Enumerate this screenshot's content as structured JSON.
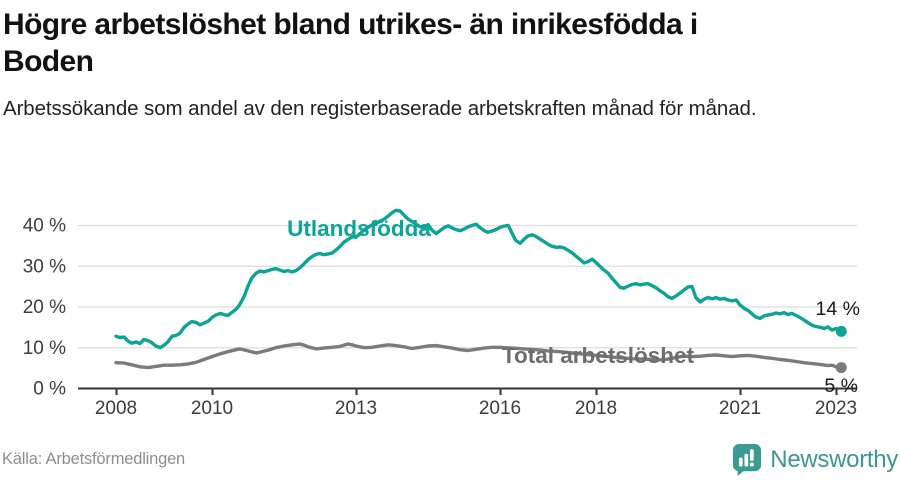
{
  "page": {
    "title": "Högre arbetslöshet bland utrikes- än inrikesfödda i Boden",
    "subtitle": "Arbetssökande som andel av den registerbaserade arbetskraften månad för månad.",
    "source": "Källa: Arbetsförmedlingen",
    "brand": {
      "name": "Newsworthy",
      "logo_icon": "bar-chart-speech-bubble-icon",
      "brand_color": "#3b9b93"
    }
  },
  "chart_data": {
    "type": "line",
    "title": "Högre arbetslöshet bland utrikes- än inrikesfödda i Boden",
    "subtitle": "Arbetssökande som andel av den registerbaserade arbetskraften månad för månad.",
    "unit": "%",
    "grid": "horizontal-only",
    "legend_position": "inline-labels-on-lines",
    "xlim": [
      2007.2,
      2023.45
    ],
    "ylim": [
      0,
      45
    ],
    "y_ticks": [
      {
        "value": 0,
        "label": "0 %"
      },
      {
        "value": 10,
        "label": "10 %"
      },
      {
        "value": 20,
        "label": "20 %"
      },
      {
        "value": 30,
        "label": "30 %"
      },
      {
        "value": 40,
        "label": "40 %"
      }
    ],
    "x_ticks": [
      {
        "value": 2008,
        "label": "2008"
      },
      {
        "value": 2010,
        "label": "2010"
      },
      {
        "value": 2013,
        "label": "2013"
      },
      {
        "value": 2016,
        "label": "2016"
      },
      {
        "value": 2018,
        "label": "2018"
      },
      {
        "value": 2021,
        "label": "2021"
      },
      {
        "value": 2023,
        "label": "2023"
      }
    ],
    "series": [
      {
        "id": "utlandsfodda",
        "name": "Utlandsfödda",
        "color": "#0ca496",
        "label_color": "#0ca496",
        "end_label": "14 %",
        "end_value": 14,
        "points": [
          [
            2008.0,
            12.7
          ],
          [
            2008.08,
            12.4
          ],
          [
            2008.17,
            12.5
          ],
          [
            2008.25,
            11.5
          ],
          [
            2008.33,
            11.0
          ],
          [
            2008.42,
            11.3
          ],
          [
            2008.5,
            10.9
          ],
          [
            2008.58,
            11.9
          ],
          [
            2008.67,
            11.6
          ],
          [
            2008.75,
            11.1
          ],
          [
            2008.83,
            10.3
          ],
          [
            2008.92,
            9.9
          ],
          [
            2009.0,
            10.5
          ],
          [
            2009.08,
            11.3
          ],
          [
            2009.17,
            12.7
          ],
          [
            2009.25,
            12.9
          ],
          [
            2009.33,
            13.4
          ],
          [
            2009.42,
            14.9
          ],
          [
            2009.5,
            15.7
          ],
          [
            2009.58,
            16.3
          ],
          [
            2009.67,
            16.1
          ],
          [
            2009.75,
            15.5
          ],
          [
            2009.83,
            15.9
          ],
          [
            2009.92,
            16.4
          ],
          [
            2010.0,
            17.3
          ],
          [
            2010.08,
            17.9
          ],
          [
            2010.17,
            18.3
          ],
          [
            2010.25,
            18.0
          ],
          [
            2010.33,
            17.8
          ],
          [
            2010.42,
            18.6
          ],
          [
            2010.5,
            19.3
          ],
          [
            2010.58,
            20.5
          ],
          [
            2010.67,
            22.5
          ],
          [
            2010.75,
            25.0
          ],
          [
            2010.83,
            27.0
          ],
          [
            2010.92,
            28.2
          ],
          [
            2011.0,
            28.7
          ],
          [
            2011.08,
            28.5
          ],
          [
            2011.17,
            28.8
          ],
          [
            2011.25,
            29.1
          ],
          [
            2011.33,
            29.3
          ],
          [
            2011.42,
            28.9
          ],
          [
            2011.5,
            28.6
          ],
          [
            2011.58,
            28.8
          ],
          [
            2011.67,
            28.5
          ],
          [
            2011.75,
            28.8
          ],
          [
            2011.83,
            29.5
          ],
          [
            2011.92,
            30.5
          ],
          [
            2012.0,
            31.5
          ],
          [
            2012.08,
            32.2
          ],
          [
            2012.17,
            32.8
          ],
          [
            2012.25,
            33.0
          ],
          [
            2012.33,
            32.7
          ],
          [
            2012.42,
            32.9
          ],
          [
            2012.5,
            33.1
          ],
          [
            2012.58,
            33.8
          ],
          [
            2012.67,
            34.8
          ],
          [
            2012.75,
            35.8
          ],
          [
            2012.83,
            36.4
          ],
          [
            2012.92,
            37.1
          ],
          [
            2013.0,
            37.0
          ],
          [
            2013.08,
            37.8
          ],
          [
            2013.17,
            38.8
          ],
          [
            2013.25,
            39.4
          ],
          [
            2013.33,
            40.0
          ],
          [
            2013.42,
            40.4
          ],
          [
            2013.5,
            40.9
          ],
          [
            2013.58,
            41.4
          ],
          [
            2013.67,
            42.2
          ],
          [
            2013.75,
            43.0
          ],
          [
            2013.83,
            43.6
          ],
          [
            2013.92,
            43.4
          ],
          [
            2014.0,
            42.4
          ],
          [
            2014.08,
            41.5
          ],
          [
            2014.17,
            40.8
          ],
          [
            2014.25,
            40.2
          ],
          [
            2014.33,
            39.6
          ],
          [
            2014.42,
            39.3
          ],
          [
            2014.5,
            40.1
          ],
          [
            2014.58,
            38.8
          ],
          [
            2014.67,
            37.9
          ],
          [
            2014.75,
            38.6
          ],
          [
            2014.83,
            39.3
          ],
          [
            2014.92,
            39.8
          ],
          [
            2015.0,
            39.3
          ],
          [
            2015.08,
            38.9
          ],
          [
            2015.17,
            38.6
          ],
          [
            2015.25,
            39.0
          ],
          [
            2015.33,
            39.5
          ],
          [
            2015.42,
            39.9
          ],
          [
            2015.5,
            40.2
          ],
          [
            2015.58,
            39.4
          ],
          [
            2015.67,
            38.6
          ],
          [
            2015.75,
            38.2
          ],
          [
            2015.83,
            38.5
          ],
          [
            2015.92,
            38.9
          ],
          [
            2016.0,
            39.4
          ],
          [
            2016.08,
            39.7
          ],
          [
            2016.17,
            39.9
          ],
          [
            2016.25,
            38.0
          ],
          [
            2016.33,
            36.2
          ],
          [
            2016.42,
            35.5
          ],
          [
            2016.5,
            36.5
          ],
          [
            2016.58,
            37.3
          ],
          [
            2016.67,
            37.6
          ],
          [
            2016.75,
            37.2
          ],
          [
            2016.83,
            36.6
          ],
          [
            2016.92,
            35.9
          ],
          [
            2017.0,
            35.3
          ],
          [
            2017.08,
            34.8
          ],
          [
            2017.17,
            34.5
          ],
          [
            2017.25,
            34.6
          ],
          [
            2017.33,
            34.4
          ],
          [
            2017.42,
            33.8
          ],
          [
            2017.5,
            33.2
          ],
          [
            2017.58,
            32.4
          ],
          [
            2017.67,
            31.5
          ],
          [
            2017.75,
            30.7
          ],
          [
            2017.83,
            31.0
          ],
          [
            2017.92,
            31.6
          ],
          [
            2018.0,
            30.8
          ],
          [
            2018.08,
            29.9
          ],
          [
            2018.17,
            28.9
          ],
          [
            2018.25,
            28.2
          ],
          [
            2018.33,
            27.0
          ],
          [
            2018.42,
            25.8
          ],
          [
            2018.5,
            24.7
          ],
          [
            2018.58,
            24.5
          ],
          [
            2018.67,
            25.0
          ],
          [
            2018.75,
            25.4
          ],
          [
            2018.83,
            25.6
          ],
          [
            2018.92,
            25.3
          ],
          [
            2019.0,
            25.5
          ],
          [
            2019.08,
            25.6
          ],
          [
            2019.17,
            25.1
          ],
          [
            2019.25,
            24.6
          ],
          [
            2019.33,
            23.9
          ],
          [
            2019.42,
            23.2
          ],
          [
            2019.5,
            22.4
          ],
          [
            2019.58,
            22.0
          ],
          [
            2019.67,
            22.6
          ],
          [
            2019.75,
            23.3
          ],
          [
            2019.83,
            24.0
          ],
          [
            2019.92,
            24.8
          ],
          [
            2020.0,
            24.9
          ],
          [
            2020.08,
            22.2
          ],
          [
            2020.17,
            21.1
          ],
          [
            2020.25,
            21.8
          ],
          [
            2020.33,
            22.2
          ],
          [
            2020.42,
            21.9
          ],
          [
            2020.5,
            22.2
          ],
          [
            2020.58,
            21.8
          ],
          [
            2020.67,
            22.0
          ],
          [
            2020.75,
            21.6
          ],
          [
            2020.83,
            21.4
          ],
          [
            2020.92,
            21.6
          ],
          [
            2021.0,
            20.4
          ],
          [
            2021.08,
            19.6
          ],
          [
            2021.17,
            19.0
          ],
          [
            2021.25,
            18.2
          ],
          [
            2021.33,
            17.4
          ],
          [
            2021.42,
            17.1
          ],
          [
            2021.5,
            17.7
          ],
          [
            2021.58,
            17.9
          ],
          [
            2021.67,
            18.1
          ],
          [
            2021.75,
            18.4
          ],
          [
            2021.83,
            18.2
          ],
          [
            2021.92,
            18.5
          ],
          [
            2022.0,
            18.0
          ],
          [
            2022.08,
            18.3
          ],
          [
            2022.17,
            17.8
          ],
          [
            2022.25,
            17.3
          ],
          [
            2022.33,
            16.7
          ],
          [
            2022.42,
            16.0
          ],
          [
            2022.5,
            15.4
          ],
          [
            2022.58,
            15.1
          ],
          [
            2022.67,
            14.9
          ],
          [
            2022.75,
            14.6
          ],
          [
            2022.83,
            15.0
          ],
          [
            2022.92,
            14.2
          ],
          [
            2023.0,
            14.6
          ],
          [
            2023.11,
            13.9
          ]
        ]
      },
      {
        "id": "total",
        "name": "Total arbetslöshet",
        "color": "#7b7b7b",
        "label_color": "#6d6d6d",
        "end_label": "5 %",
        "end_value": 5,
        "points": [
          [
            2008.0,
            6.2
          ],
          [
            2008.17,
            6.1
          ],
          [
            2008.33,
            5.7
          ],
          [
            2008.5,
            5.2
          ],
          [
            2008.67,
            5.0
          ],
          [
            2008.83,
            5.3
          ],
          [
            2009.0,
            5.6
          ],
          [
            2009.17,
            5.6
          ],
          [
            2009.33,
            5.7
          ],
          [
            2009.5,
            5.9
          ],
          [
            2009.67,
            6.3
          ],
          [
            2009.83,
            7.0
          ],
          [
            2010.0,
            7.7
          ],
          [
            2010.17,
            8.4
          ],
          [
            2010.33,
            8.9
          ],
          [
            2010.5,
            9.4
          ],
          [
            2010.58,
            9.6
          ],
          [
            2010.75,
            9.1
          ],
          [
            2010.92,
            8.6
          ],
          [
            2011.0,
            8.8
          ],
          [
            2011.17,
            9.3
          ],
          [
            2011.33,
            9.9
          ],
          [
            2011.5,
            10.3
          ],
          [
            2011.67,
            10.6
          ],
          [
            2011.83,
            10.8
          ],
          [
            2011.92,
            10.5
          ],
          [
            2012.0,
            10.1
          ],
          [
            2012.17,
            9.6
          ],
          [
            2012.33,
            9.8
          ],
          [
            2012.5,
            10.0
          ],
          [
            2012.67,
            10.2
          ],
          [
            2012.83,
            10.8
          ],
          [
            2012.92,
            10.6
          ],
          [
            2013.0,
            10.3
          ],
          [
            2013.17,
            9.9
          ],
          [
            2013.33,
            10.0
          ],
          [
            2013.5,
            10.3
          ],
          [
            2013.67,
            10.6
          ],
          [
            2013.83,
            10.4
          ],
          [
            2014.0,
            10.1
          ],
          [
            2014.17,
            9.7
          ],
          [
            2014.33,
            10.0
          ],
          [
            2014.5,
            10.3
          ],
          [
            2014.67,
            10.4
          ],
          [
            2014.83,
            10.1
          ],
          [
            2015.0,
            9.8
          ],
          [
            2015.17,
            9.4
          ],
          [
            2015.33,
            9.2
          ],
          [
            2015.5,
            9.5
          ],
          [
            2015.67,
            9.8
          ],
          [
            2015.83,
            10.0
          ],
          [
            2016.0,
            10.0
          ],
          [
            2016.25,
            9.8
          ],
          [
            2016.5,
            9.6
          ],
          [
            2016.75,
            9.4
          ],
          [
            2017.0,
            9.1
          ],
          [
            2017.25,
            8.9
          ],
          [
            2017.5,
            8.6
          ],
          [
            2017.75,
            8.3
          ],
          [
            2018.0,
            8.0
          ],
          [
            2018.25,
            7.7
          ],
          [
            2018.5,
            7.4
          ],
          [
            2018.75,
            7.2
          ],
          [
            2019.0,
            7.1
          ],
          [
            2019.17,
            7.0
          ],
          [
            2019.33,
            6.9
          ],
          [
            2019.5,
            7.1
          ],
          [
            2019.67,
            7.5
          ],
          [
            2019.83,
            7.8
          ],
          [
            2020.0,
            7.7
          ],
          [
            2020.17,
            7.8
          ],
          [
            2020.33,
            8.0
          ],
          [
            2020.5,
            8.1
          ],
          [
            2020.67,
            7.9
          ],
          [
            2020.83,
            7.7
          ],
          [
            2021.0,
            7.9
          ],
          [
            2021.17,
            8.0
          ],
          [
            2021.33,
            7.8
          ],
          [
            2021.5,
            7.5
          ],
          [
            2021.67,
            7.3
          ],
          [
            2021.83,
            7.0
          ],
          [
            2022.0,
            6.8
          ],
          [
            2022.17,
            6.5
          ],
          [
            2022.33,
            6.2
          ],
          [
            2022.5,
            6.0
          ],
          [
            2022.67,
            5.8
          ],
          [
            2022.83,
            5.5
          ],
          [
            2022.92,
            5.6
          ],
          [
            2023.0,
            5.2
          ],
          [
            2023.11,
            5.0
          ]
        ]
      }
    ],
    "colors": {
      "grid": "#dddddd",
      "axis": "#333333",
      "tick_text": "#3d3d3d",
      "end_label_text": "#1a1a1a"
    }
  }
}
